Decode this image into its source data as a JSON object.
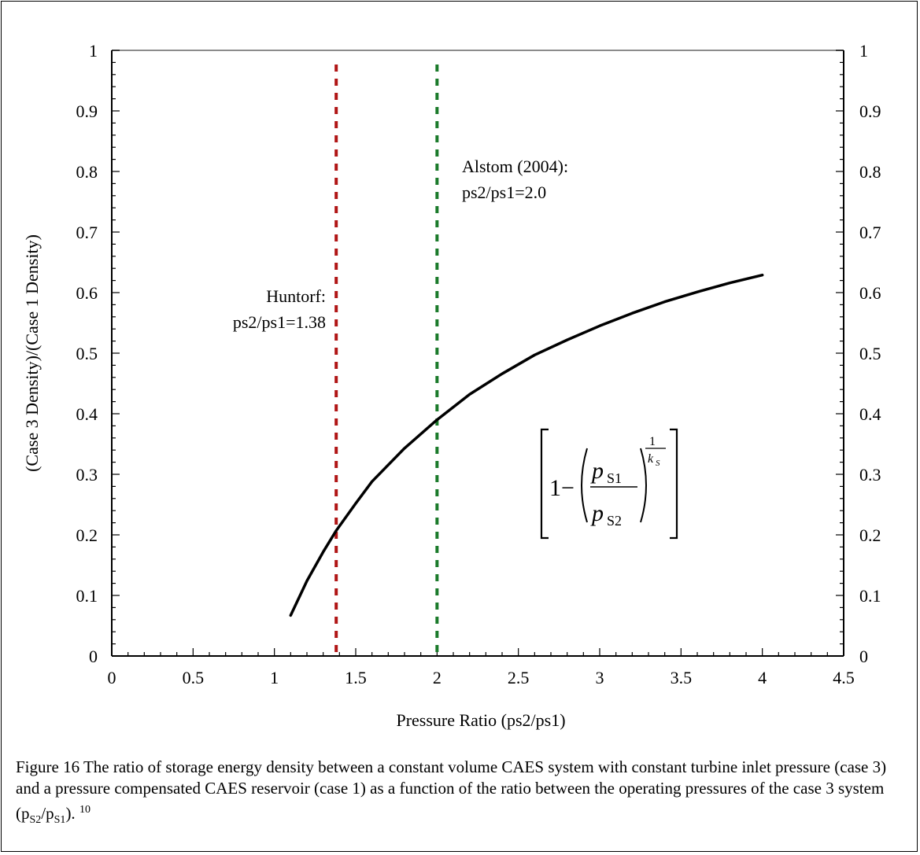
{
  "chart_data": {
    "type": "line",
    "xlabel": "Pressure Ratio (ps2/ps1)",
    "ylabel": "(Case 3 Density)/(Case 1 Density)",
    "xlim": [
      0,
      4.5
    ],
    "ylim": [
      0,
      1
    ],
    "x_ticks": [
      "0",
      "0.5",
      "1",
      "1.5",
      "2",
      "2.5",
      "3",
      "3.5",
      "4",
      "4.5"
    ],
    "y_ticks": [
      "0",
      "0.1",
      "0.2",
      "0.3",
      "0.4",
      "0.5",
      "0.6",
      "0.7",
      "0.8",
      "0.9",
      "1"
    ],
    "grid": false,
    "series": [
      {
        "color": "#000000",
        "x": [
          1.1,
          1.2,
          1.3,
          1.38,
          1.5,
          1.6,
          1.8,
          2.0,
          2.2,
          2.4,
          2.6,
          2.8,
          3.0,
          3.2,
          3.4,
          3.6,
          3.8,
          4.0
        ],
        "y": [
          0.067,
          0.124,
          0.172,
          0.207,
          0.252,
          0.288,
          0.343,
          0.39,
          0.432,
          0.466,
          0.497,
          0.522,
          0.545,
          0.566,
          0.585,
          0.601,
          0.616,
          0.629
        ]
      }
    ],
    "reference_lines": [
      {
        "x": 1.38,
        "color": "#b01515",
        "label_line1": "Huntorf:",
        "label_line2": "ps2/ps1=1.38"
      },
      {
        "x": 2.0,
        "color": "#1a7a2a",
        "label_line1": "Alstom (2004):",
        "label_line2": "ps2/ps1=2.0"
      }
    ],
    "formula": {
      "one": "1",
      "minus": "−",
      "numerator": "p",
      "numerator_sub": "S1",
      "denominator": "p",
      "denominator_sub": "S2",
      "exp_num": "1",
      "exp_den": "k",
      "exp_den_sub": "S"
    }
  },
  "caption": {
    "text_main": "Figure 16 The ratio of storage energy density between a constant volume CAES system with constant turbine inlet pressure (case 3) and a pressure compensated CAES reservoir (case 1) as a function of the ratio between the operating pressures of the case 3 system (p",
    "sub1": "S2",
    "slash": "/p",
    "sub2": "S1",
    "text_end": ").",
    "ref": "10"
  }
}
